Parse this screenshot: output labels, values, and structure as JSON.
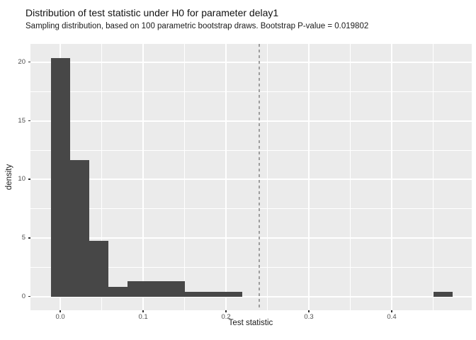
{
  "chart_data": {
    "type": "bar",
    "subtype": "histogram",
    "title": "Distribution of test statistic under H0 for parameter delay1",
    "subtitle": "Sampling distribution, based on 100 parametric bootstrap draws. Bootstrap P-value = 0.019802",
    "xlabel": "Test statistic",
    "ylabel": "density",
    "x_range": [
      -0.036,
      0.4966
    ],
    "y_range": [
      -1.15,
      21.57
    ],
    "x_major_ticks": [
      0.0,
      0.1,
      0.2,
      0.3,
      0.4
    ],
    "x_tick_labels": [
      "0.0",
      "0.1",
      "0.2",
      "0.3",
      "0.4"
    ],
    "x_minor_ticks": [
      0.05,
      0.15,
      0.25,
      0.35,
      0.45
    ],
    "y_major_ticks": [
      0,
      5,
      10,
      15,
      20
    ],
    "y_tick_labels": [
      "0",
      "5",
      "10",
      "15",
      "20"
    ],
    "y_minor_ticks": [
      2.5,
      7.5,
      12.5,
      17.5
    ],
    "bin_start": -0.0116,
    "bin_width": 0.0231,
    "counts": [
      47,
      27,
      11,
      2,
      3,
      3,
      3,
      1,
      1,
      1,
      0,
      0,
      0,
      0,
      0,
      0,
      0,
      0,
      0,
      0,
      1
    ],
    "densities": [
      20.35,
      11.69,
      4.76,
      0.87,
      1.3,
      1.3,
      1.3,
      0.43,
      0.43,
      0.43,
      0,
      0,
      0,
      0,
      0,
      0,
      0,
      0,
      0,
      0,
      0.43
    ],
    "vline": {
      "x": 0.24,
      "linetype": "dashed",
      "color": "#9e9e9e"
    },
    "legend": "none",
    "grid": "on",
    "colors": {
      "bar": "#474747",
      "panel": "#ebebeb",
      "grid_major": "#ffffff",
      "grid_minor": "#ffffff",
      "tick_mark": "#333333",
      "tick_label": "#4d4d4d",
      "text": "#1a1a1a"
    }
  }
}
